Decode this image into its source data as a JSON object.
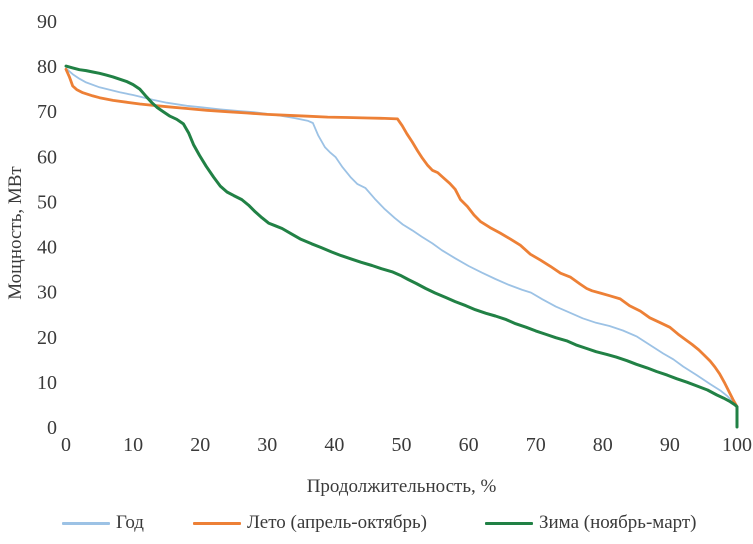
{
  "colors": {
    "text": "#3a3a3a",
    "background": "#ffffff"
  },
  "chart_data": {
    "type": "line",
    "title": "",
    "xlabel": "Продолжительность, %",
    "ylabel": "Мощность, МВт",
    "xlim": [
      0,
      100
    ],
    "ylim": [
      0,
      90
    ],
    "x_ticks": [
      0,
      10,
      20,
      30,
      40,
      50,
      60,
      70,
      80,
      90,
      100
    ],
    "y_ticks": [
      0,
      10,
      20,
      30,
      40,
      50,
      60,
      70,
      80,
      90
    ],
    "grid": false,
    "axis_spines": false,
    "legend_position": "bottom",
    "series": [
      {
        "name": "Год",
        "color": "#9cc2e5",
        "width": 1.8,
        "points": [
          [
            0,
            79.5
          ],
          [
            1,
            78.2
          ],
          [
            2,
            77.2
          ],
          [
            3,
            76.4
          ],
          [
            5,
            75.3
          ],
          [
            8,
            74.2
          ],
          [
            10,
            73.6
          ],
          [
            13,
            72.5
          ],
          [
            15,
            71.9
          ],
          [
            18,
            71.2
          ],
          [
            20,
            70.9
          ],
          [
            23,
            70.4
          ],
          [
            26,
            70.0
          ],
          [
            28,
            69.8
          ],
          [
            30,
            69.4
          ],
          [
            32,
            69.0
          ],
          [
            34,
            68.5
          ],
          [
            36,
            67.9
          ],
          [
            36.8,
            67.4
          ],
          [
            37.6,
            64.6
          ],
          [
            38.6,
            62.0
          ],
          [
            39.4,
            60.8
          ],
          [
            40.2,
            59.8
          ],
          [
            41.2,
            57.6
          ],
          [
            42.4,
            55.4
          ],
          [
            43.4,
            53.9
          ],
          [
            44.6,
            53.0
          ],
          [
            46,
            50.6
          ],
          [
            47.5,
            48.3
          ],
          [
            49,
            46.3
          ],
          [
            50.2,
            44.9
          ],
          [
            51.6,
            43.6
          ],
          [
            53,
            42.2
          ],
          [
            54.6,
            40.7
          ],
          [
            56,
            39.2
          ],
          [
            58,
            37.4
          ],
          [
            60,
            35.7
          ],
          [
            62,
            34.2
          ],
          [
            64,
            32.8
          ],
          [
            66,
            31.5
          ],
          [
            68,
            30.4
          ],
          [
            69.3,
            29.8
          ],
          [
            71,
            28.3
          ],
          [
            73,
            26.7
          ],
          [
            75,
            25.4
          ],
          [
            77,
            24.1
          ],
          [
            79,
            23.1
          ],
          [
            81,
            22.4
          ],
          [
            83,
            21.4
          ],
          [
            85,
            20.1
          ],
          [
            87,
            18.2
          ],
          [
            89,
            16.3
          ],
          [
            90.5,
            15.0
          ],
          [
            92,
            13.4
          ],
          [
            94,
            11.5
          ],
          [
            96,
            9.5
          ],
          [
            97.6,
            8.0
          ],
          [
            98.6,
            6.8
          ],
          [
            99.5,
            5.3
          ],
          [
            100,
            4.4
          ]
        ]
      },
      {
        "name": "Лето (апрель-октябрь)",
        "color": "#ed8036",
        "width": 2.8,
        "points": [
          [
            0,
            79.3
          ],
          [
            0.5,
            77.6
          ],
          [
            1,
            75.6
          ],
          [
            1.6,
            74.8
          ],
          [
            2.5,
            74.1
          ],
          [
            4,
            73.4
          ],
          [
            5,
            73.0
          ],
          [
            7,
            72.4
          ],
          [
            9,
            72.0
          ],
          [
            11,
            71.6
          ],
          [
            13,
            71.3
          ],
          [
            15,
            71.0
          ],
          [
            18,
            70.6
          ],
          [
            21,
            70.2
          ],
          [
            24,
            69.9
          ],
          [
            27,
            69.6
          ],
          [
            30,
            69.3
          ],
          [
            33,
            69.1
          ],
          [
            36,
            68.9
          ],
          [
            39,
            68.7
          ],
          [
            42,
            68.6
          ],
          [
            45,
            68.5
          ],
          [
            47.5,
            68.4
          ],
          [
            49.4,
            68.3
          ],
          [
            50.1,
            66.8
          ],
          [
            50.8,
            65.0
          ],
          [
            51.6,
            63.2
          ],
          [
            52.4,
            61.2
          ],
          [
            53.1,
            59.6
          ],
          [
            53.9,
            58.0
          ],
          [
            54.6,
            56.9
          ],
          [
            55.4,
            56.4
          ],
          [
            56.2,
            55.3
          ],
          [
            57.2,
            54.0
          ],
          [
            58,
            52.7
          ],
          [
            58.8,
            50.4
          ],
          [
            59.8,
            48.9
          ],
          [
            60.8,
            47.0
          ],
          [
            61.8,
            45.5
          ],
          [
            63.2,
            44.2
          ],
          [
            64.7,
            43.0
          ],
          [
            66.2,
            41.7
          ],
          [
            67.7,
            40.3
          ],
          [
            69.2,
            38.3
          ],
          [
            70.7,
            37.0
          ],
          [
            72.2,
            35.6
          ],
          [
            73.7,
            34.1
          ],
          [
            75.2,
            33.2
          ],
          [
            76.6,
            31.7
          ],
          [
            77.6,
            30.7
          ],
          [
            78.4,
            30.2
          ],
          [
            79.6,
            29.7
          ],
          [
            81,
            29.1
          ],
          [
            82.6,
            28.4
          ],
          [
            84,
            26.9
          ],
          [
            85.6,
            25.7
          ],
          [
            87,
            24.2
          ],
          [
            88.6,
            23.1
          ],
          [
            90,
            22.1
          ],
          [
            91.2,
            20.6
          ],
          [
            92.3,
            19.4
          ],
          [
            93.3,
            18.3
          ],
          [
            94.3,
            17.1
          ],
          [
            95.2,
            15.8
          ],
          [
            96,
            14.6
          ],
          [
            96.7,
            13.3
          ],
          [
            97.4,
            11.8
          ],
          [
            98.1,
            9.9
          ],
          [
            98.8,
            7.9
          ],
          [
            99.4,
            6.1
          ],
          [
            100,
            4.5
          ]
        ]
      },
      {
        "name": "Зима (ноябрь-март)",
        "color": "#218145",
        "width": 3,
        "points": [
          [
            0,
            80.0
          ],
          [
            1,
            79.6
          ],
          [
            2,
            79.2
          ],
          [
            3,
            79.0
          ],
          [
            4,
            78.7
          ],
          [
            5,
            78.4
          ],
          [
            6,
            78.0
          ],
          [
            7,
            77.6
          ],
          [
            8,
            77.1
          ],
          [
            9,
            76.6
          ],
          [
            10,
            75.9
          ],
          [
            11,
            74.9
          ],
          [
            12,
            73.2
          ],
          [
            12.8,
            71.9
          ],
          [
            13.6,
            70.8
          ],
          [
            14.5,
            69.9
          ],
          [
            15.5,
            68.9
          ],
          [
            16.5,
            68.2
          ],
          [
            17.5,
            67.2
          ],
          [
            18.3,
            65.1
          ],
          [
            19,
            62.6
          ],
          [
            19.9,
            60.2
          ],
          [
            20.9,
            57.8
          ],
          [
            22,
            55.4
          ],
          [
            23,
            53.4
          ],
          [
            24,
            52.1
          ],
          [
            25,
            51.3
          ],
          [
            26.2,
            50.4
          ],
          [
            27.2,
            49.2
          ],
          [
            28.2,
            47.7
          ],
          [
            29.2,
            46.4
          ],
          [
            30.2,
            45.2
          ],
          [
            31.2,
            44.6
          ],
          [
            32.2,
            44.0
          ],
          [
            33.6,
            42.8
          ],
          [
            35,
            41.6
          ],
          [
            36.6,
            40.6
          ],
          [
            38,
            39.8
          ],
          [
            39.6,
            38.8
          ],
          [
            41,
            38.0
          ],
          [
            42.6,
            37.2
          ],
          [
            44,
            36.5
          ],
          [
            45.6,
            35.8
          ],
          [
            47,
            35.1
          ],
          [
            48.6,
            34.4
          ],
          [
            50,
            33.5
          ],
          [
            51,
            32.7
          ],
          [
            52.2,
            31.8
          ],
          [
            53.6,
            30.7
          ],
          [
            55,
            29.7
          ],
          [
            56.6,
            28.7
          ],
          [
            58,
            27.8
          ],
          [
            59.6,
            26.9
          ],
          [
            61,
            26.0
          ],
          [
            62.6,
            25.2
          ],
          [
            64,
            24.6
          ],
          [
            65.6,
            23.8
          ],
          [
            67,
            22.9
          ],
          [
            68.6,
            22.1
          ],
          [
            70,
            21.3
          ],
          [
            71.6,
            20.5
          ],
          [
            73,
            19.8
          ],
          [
            74.6,
            19.1
          ],
          [
            76,
            18.2
          ],
          [
            77.6,
            17.4
          ],
          [
            79,
            16.7
          ],
          [
            80.6,
            16.1
          ],
          [
            82,
            15.5
          ],
          [
            83.6,
            14.7
          ],
          [
            85,
            13.9
          ],
          [
            86.6,
            13.1
          ],
          [
            88,
            12.3
          ],
          [
            89.6,
            11.5
          ],
          [
            91,
            10.7
          ],
          [
            92.6,
            9.9
          ],
          [
            94,
            9.1
          ],
          [
            95.6,
            8.2
          ],
          [
            97,
            7.1
          ],
          [
            98,
            6.4
          ],
          [
            99,
            5.6
          ],
          [
            99.7,
            4.9
          ],
          [
            100,
            4.5
          ],
          [
            100,
            0
          ]
        ]
      }
    ]
  }
}
